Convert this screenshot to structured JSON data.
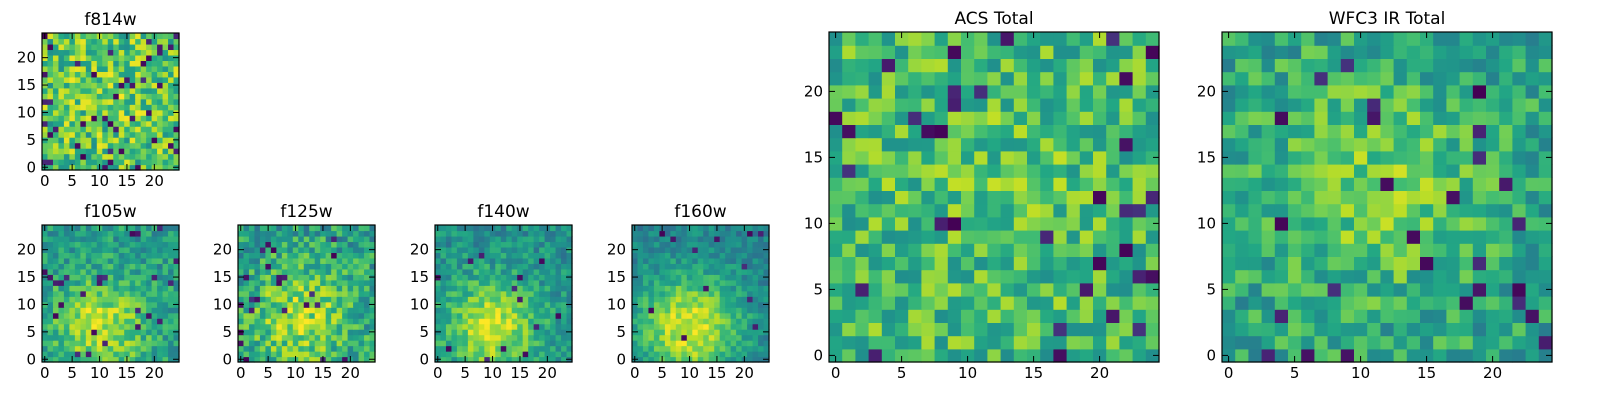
{
  "figure": {
    "description_free": true
  },
  "chart_data": [
    {
      "type": "heatmap",
      "panel": "f814w",
      "title": "f814w",
      "colormap": "viridis",
      "x_ticks": [
        "0",
        "5",
        "10",
        "15",
        "20"
      ],
      "y_ticks": [
        "0",
        "5",
        "10",
        "15",
        "20"
      ],
      "xlim": [
        -0.5,
        24.5
      ],
      "ylim": [
        -0.5,
        24.5
      ],
      "grid_size": [
        25,
        25
      ],
      "pattern": {
        "seed": 11,
        "base": 0.72,
        "blob_x": 12,
        "blob_y": 14,
        "blob_amp": 0.05,
        "blob_sigma": 6,
        "noise": 0.24,
        "dark_frac": 0.07
      }
    },
    {
      "type": "heatmap",
      "panel": "f105w",
      "title": "f105w",
      "colormap": "viridis",
      "x_ticks": [
        "0",
        "5",
        "10",
        "15",
        "20"
      ],
      "y_ticks": [
        "0",
        "5",
        "10",
        "15",
        "20"
      ],
      "xlim": [
        -0.5,
        24.5
      ],
      "ylim": [
        -0.5,
        24.5
      ],
      "grid_size": [
        25,
        25
      ],
      "pattern": {
        "seed": 23,
        "base": 0.55,
        "blob_x": 10,
        "blob_y": 6,
        "blob_amp": 0.35,
        "blob_sigma": 6,
        "noise": 0.16,
        "dark_frac": 0.03
      }
    },
    {
      "type": "heatmap",
      "panel": "f125w",
      "title": "f125w",
      "colormap": "viridis",
      "x_ticks": [
        "0",
        "5",
        "10",
        "15",
        "20"
      ],
      "y_ticks": [
        "0",
        "5",
        "10",
        "15",
        "20"
      ],
      "xlim": [
        -0.5,
        24.5
      ],
      "ylim": [
        -0.5,
        24.5
      ],
      "grid_size": [
        25,
        25
      ],
      "pattern": {
        "seed": 37,
        "base": 0.55,
        "blob_x": 11,
        "blob_y": 8,
        "blob_amp": 0.3,
        "blob_sigma": 7,
        "noise": 0.2,
        "dark_frac": 0.04
      }
    },
    {
      "type": "heatmap",
      "panel": "f140w",
      "title": "f140w",
      "colormap": "viridis",
      "x_ticks": [
        "0",
        "5",
        "10",
        "15",
        "20"
      ],
      "y_ticks": [
        "0",
        "5",
        "10",
        "15",
        "20"
      ],
      "xlim": [
        -0.5,
        24.5
      ],
      "ylim": [
        -0.5,
        24.5
      ],
      "grid_size": [
        25,
        25
      ],
      "pattern": {
        "seed": 41,
        "base": 0.5,
        "blob_x": 10,
        "blob_y": 6,
        "blob_amp": 0.42,
        "blob_sigma": 6,
        "noise": 0.14,
        "dark_frac": 0.02
      }
    },
    {
      "type": "heatmap",
      "panel": "f160w",
      "title": "f160w",
      "colormap": "viridis",
      "x_ticks": [
        "0",
        "5",
        "10",
        "15",
        "20"
      ],
      "y_ticks": [
        "0",
        "5",
        "10",
        "15",
        "20"
      ],
      "xlim": [
        -0.5,
        24.5
      ],
      "ylim": [
        -0.5,
        24.5
      ],
      "grid_size": [
        25,
        25
      ],
      "pattern": {
        "seed": 53,
        "base": 0.45,
        "blob_x": 10,
        "blob_y": 6,
        "blob_amp": 0.5,
        "blob_sigma": 6.5,
        "noise": 0.12,
        "dark_frac": 0.02
      }
    },
    {
      "type": "heatmap",
      "panel": "acs-total",
      "title": "ACS Total",
      "colormap": "viridis",
      "x_ticks": [
        "0",
        "5",
        "10",
        "15",
        "20"
      ],
      "y_ticks": [
        "0",
        "5",
        "10",
        "15",
        "20"
      ],
      "xlim": [
        -0.5,
        24.5
      ],
      "ylim": [
        -0.5,
        24.5
      ],
      "grid_size": [
        25,
        25
      ],
      "pattern": {
        "seed": 67,
        "base": 0.68,
        "blob_x": 12,
        "blob_y": 14,
        "blob_amp": 0.05,
        "blob_sigma": 6,
        "noise": 0.2,
        "dark_frac": 0.05
      }
    },
    {
      "type": "heatmap",
      "panel": "wfc3-ir-total",
      "title": "WFC3 IR Total",
      "colormap": "viridis",
      "x_ticks": [
        "0",
        "5",
        "10",
        "15",
        "20"
      ],
      "y_ticks": [
        "0",
        "5",
        "10",
        "15",
        "20"
      ],
      "xlim": [
        -0.5,
        24.5
      ],
      "ylim": [
        -0.5,
        24.5
      ],
      "grid_size": [
        25,
        25
      ],
      "pattern": {
        "seed": 79,
        "base": 0.58,
        "blob_x": 11,
        "blob_y": 13,
        "blob_amp": 0.2,
        "blob_sigma": 6,
        "noise": 0.18,
        "dark_frac": 0.05
      }
    }
  ]
}
